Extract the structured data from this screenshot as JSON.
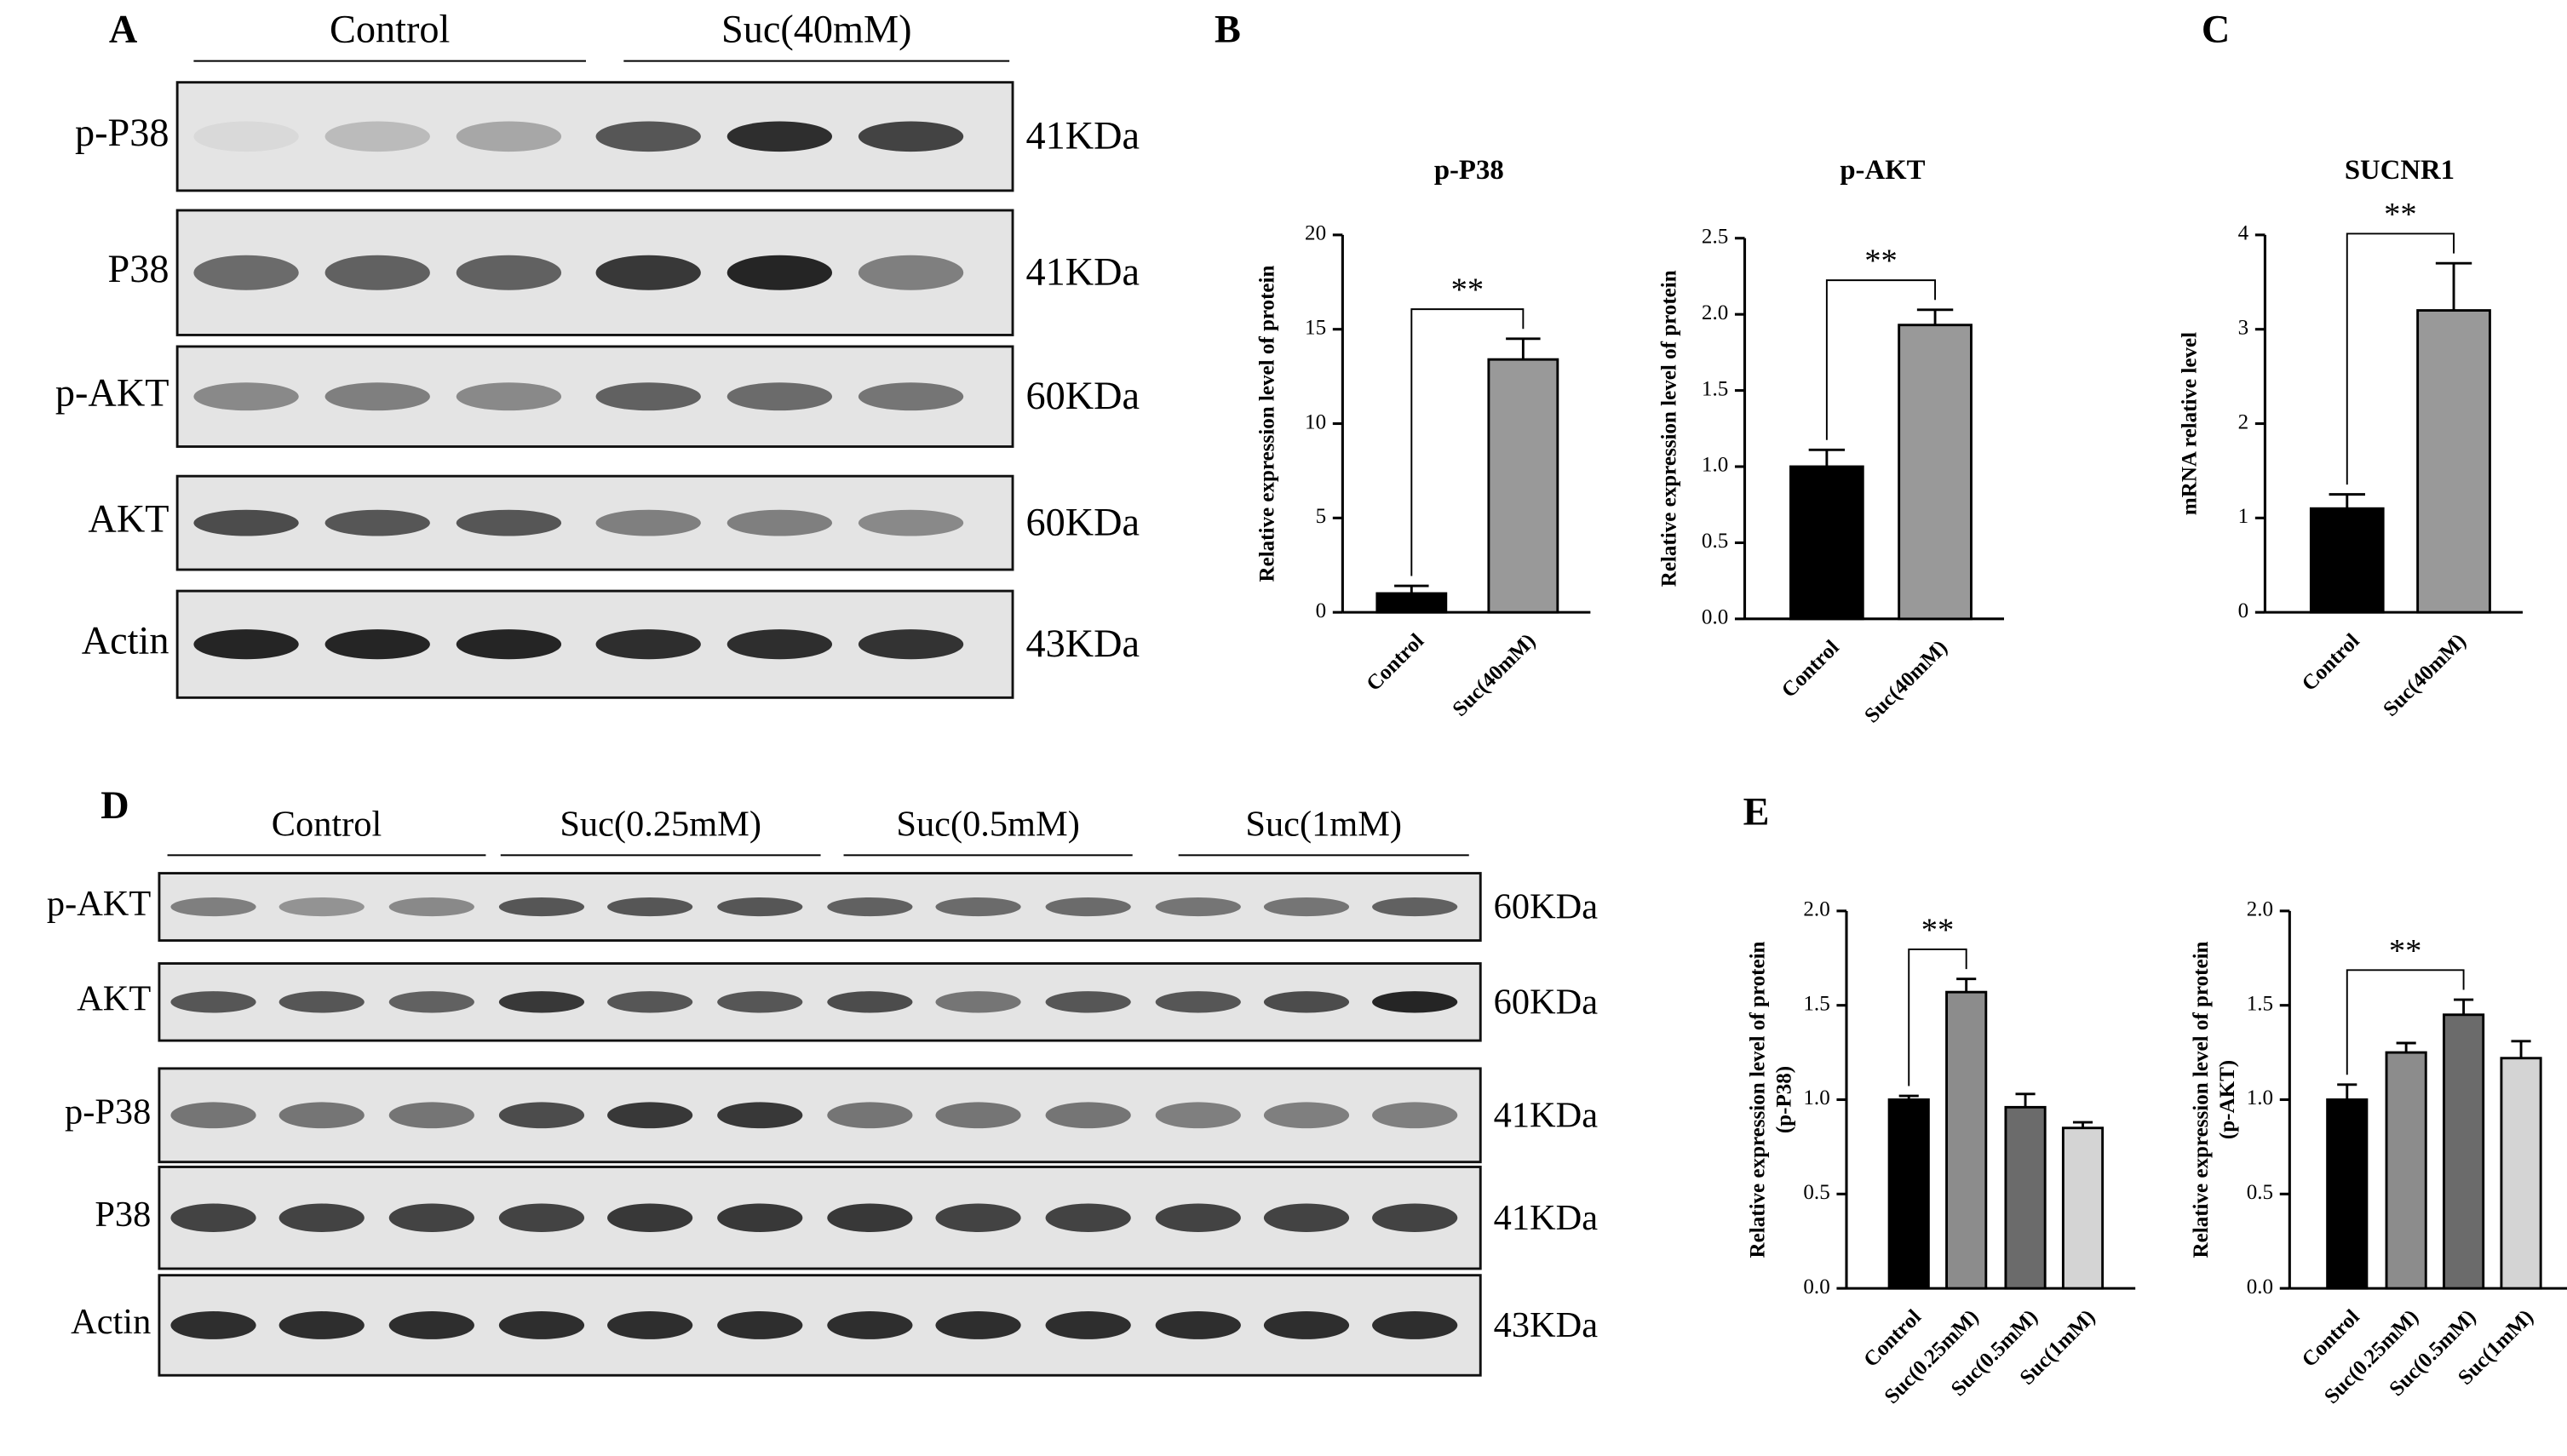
{
  "blots": [
    {
      "label": "A",
      "groups": [
        "Control",
        "Suc(40mM)"
      ],
      "rows": [
        {
          "name": "p-P38",
          "size": "41KDa"
        },
        {
          "name": "P38",
          "size": "41KDa"
        },
        {
          "name": "p-AKT",
          "size": "60KDa"
        },
        {
          "name": "AKT",
          "size": "60KDa"
        },
        {
          "name": "Actin",
          "size": "43KDa"
        }
      ]
    },
    {
      "label": "D",
      "groups": [
        "Control",
        "Suc(0.25mM)",
        "Suc(0.5mM)",
        "Suc(1mM)"
      ],
      "rows": [
        {
          "name": "p-AKT",
          "size": "60KDa"
        },
        {
          "name": "AKT",
          "size": "60KDa"
        },
        {
          "name": "p-P38",
          "size": "41KDa"
        },
        {
          "name": "P38",
          "size": "41KDa"
        },
        {
          "name": "Actin",
          "size": "43KDa"
        }
      ]
    }
  ],
  "panel_labels": [
    "B",
    "C",
    "E"
  ],
  "chart_data": [
    {
      "type": "bar",
      "title": "p-P38",
      "y_label": [
        "Relative expression level of protein"
      ],
      "categories": [
        "Control",
        "Suc(40mM)"
      ],
      "values": [
        1.0,
        13.4
      ],
      "errors": [
        0.4,
        1.1
      ],
      "colors": [
        "#000000",
        "#999999"
      ],
      "ylim": [
        0,
        20
      ],
      "yticks": [
        0,
        5,
        10,
        15,
        20
      ],
      "significance": {
        "from": 0,
        "to": 1,
        "label": "**"
      }
    },
    {
      "type": "bar",
      "title": "p-AKT",
      "y_label": [
        "Relative expression level of protein"
      ],
      "categories": [
        "Control",
        "Suc(40mM)"
      ],
      "values": [
        1.0,
        1.93
      ],
      "errors": [
        0.11,
        0.1
      ],
      "colors": [
        "#000000",
        "#999999"
      ],
      "ylim": [
        0,
        2.5
      ],
      "yticks": [
        {
          "value": 0,
          "label": "0.0"
        },
        {
          "value": 0.5,
          "label": "0.5"
        },
        {
          "value": 1,
          "label": "1.0"
        },
        {
          "value": 1.5,
          "label": "1.5"
        },
        {
          "value": 2,
          "label": "2.0"
        },
        {
          "value": 2.5,
          "label": "2.5"
        }
      ],
      "significance": {
        "from": 0,
        "to": 1,
        "label": "**"
      }
    },
    {
      "type": "bar",
      "title": "SUCNR1",
      "y_label": [
        "mRNA relative level"
      ],
      "categories": [
        "Control",
        "Suc(40mM)"
      ],
      "values": [
        1.1,
        3.2
      ],
      "errors": [
        0.15,
        0.5
      ],
      "colors": [
        "#000000",
        "#999999"
      ],
      "ylim": [
        0,
        4
      ],
      "yticks": [
        0,
        1,
        2,
        3,
        4
      ],
      "significance": {
        "from": 0,
        "to": 1,
        "label": "**"
      }
    },
    {
      "type": "bar",
      "y_label": [
        "Relative expression level of protein",
        "(p-P38)"
      ],
      "categories": [
        "Control",
        "Suc(0.25mM)",
        "Suc(0.5mM)",
        "Suc(1mM)"
      ],
      "values": [
        1.0,
        1.57,
        0.96,
        0.85
      ],
      "errors": [
        0.02,
        0.07,
        0.07,
        0.03
      ],
      "colors": [
        "#000000",
        "#8c8c8c",
        "#6b6b6b",
        "#d4d4d4"
      ],
      "ylim": [
        0,
        2
      ],
      "yticks": [
        {
          "value": 0,
          "label": "0.0"
        },
        {
          "value": 0.5,
          "label": "0.5"
        },
        {
          "value": 1,
          "label": "1.0"
        },
        {
          "value": 1.5,
          "label": "1.5"
        },
        {
          "value": 2,
          "label": "2.0"
        }
      ],
      "significance": {
        "from": 0,
        "to": 1,
        "label": "**"
      }
    },
    {
      "type": "bar",
      "y_label": [
        "Relative expression level of protein",
        "(p-AKT)"
      ],
      "categories": [
        "Control",
        "Suc(0.25mM)",
        "Suc(0.5mM)",
        "Suc(1mM)"
      ],
      "values": [
        1.0,
        1.25,
        1.45,
        1.22
      ],
      "errors": [
        0.08,
        0.05,
        0.08,
        0.09
      ],
      "colors": [
        "#000000",
        "#8c8c8c",
        "#6b6b6b",
        "#d4d4d4"
      ],
      "ylim": [
        0,
        2
      ],
      "yticks": [
        {
          "value": 0,
          "label": "0.0"
        },
        {
          "value": 0.5,
          "label": "0.5"
        },
        {
          "value": 1,
          "label": "1.0"
        },
        {
          "value": 1.5,
          "label": "1.5"
        },
        {
          "value": 2,
          "label": "2.0"
        }
      ],
      "significance": {
        "from": 0,
        "to": 2,
        "label": "**"
      }
    }
  ]
}
